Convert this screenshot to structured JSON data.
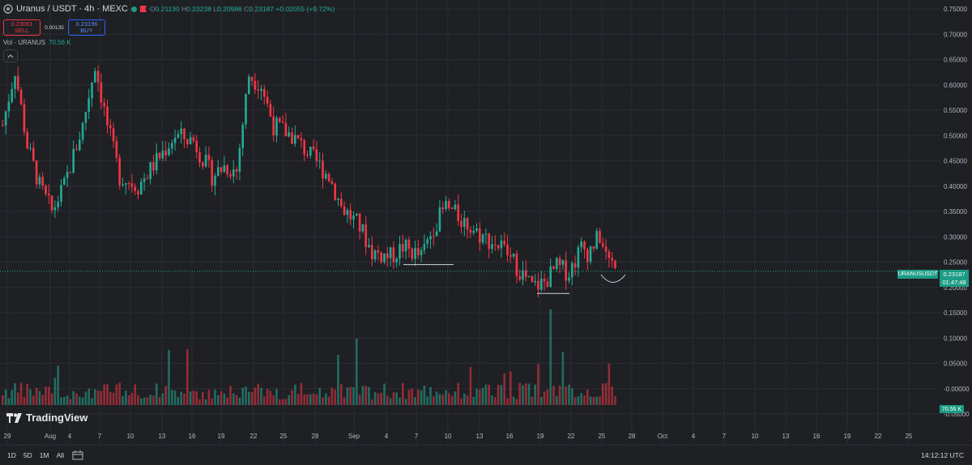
{
  "header": {
    "symbol_title": "Uranus / USDT · 4h · MEXC",
    "ohlc": {
      "o_label": "O",
      "o": "0.21130",
      "h_label": "H",
      "h": "0.23238",
      "l_label": "L",
      "l": "0.20986",
      "c_label": "C",
      "c": "0.23187",
      "change": "+0.02055 (+9.72%)"
    },
    "sell_price": "0.23061",
    "sell_label": "SELL",
    "spread": "0.00135",
    "buy_price": "0.23196",
    "buy_label": "BUY",
    "volume_label": "Vol · URANUS",
    "volume_value": "70.56 K"
  },
  "price_axis": {
    "ticks": [
      "0.75000",
      "0.70000",
      "0.65000",
      "0.60000",
      "0.55000",
      "0.50000",
      "0.45000",
      "0.40000",
      "0.35000",
      "0.30000",
      "0.25000",
      "0.20000",
      "0.15000",
      "0.10000",
      "0.05000",
      "-0.00000",
      "-0.05000"
    ],
    "last_price": "0.23187",
    "countdown": "01:47:48",
    "symbol_tag": "URANUSUSDT",
    "volume_tag": "70.56 K"
  },
  "time_axis": {
    "labels": [
      "29",
      "Aug",
      "4",
      "7",
      "10",
      "13",
      "16",
      "19",
      "22",
      "25",
      "28",
      "Sep",
      "4",
      "7",
      "10",
      "13",
      "16",
      "19",
      "22",
      "25",
      "28",
      "Oct",
      "4",
      "7",
      "10",
      "13",
      "16",
      "19",
      "22",
      "25"
    ]
  },
  "bottom_bar": {
    "timeframes": [
      "1D",
      "5D",
      "1M",
      "All"
    ],
    "clock": "14:12:12 UTC"
  },
  "branding": {
    "logo_text": "TradingView"
  },
  "colors": {
    "up": "#22ab94",
    "down": "#f23645",
    "bg": "#1f2024",
    "grid": "#2a2c33"
  },
  "chart_data": {
    "type": "candlestick",
    "interval": "4h",
    "ylim": [
      -0.075,
      0.76
    ],
    "price_path": [
      [
        0,
        0.52
      ],
      [
        4,
        0.63
      ],
      [
        8,
        0.48
      ],
      [
        12,
        0.4
      ],
      [
        16,
        0.35
      ],
      [
        20,
        0.4
      ],
      [
        26,
        0.52
      ],
      [
        30,
        0.64
      ],
      [
        34,
        0.52
      ],
      [
        38,
        0.42
      ],
      [
        44,
        0.4
      ],
      [
        50,
        0.45
      ],
      [
        56,
        0.5
      ],
      [
        62,
        0.49
      ],
      [
        68,
        0.42
      ],
      [
        72,
        0.44
      ],
      [
        76,
        0.43
      ],
      [
        80,
        0.62
      ],
      [
        84,
        0.6
      ],
      [
        88,
        0.52
      ],
      [
        94,
        0.5
      ],
      [
        100,
        0.46
      ],
      [
        106,
        0.42
      ],
      [
        110,
        0.36
      ],
      [
        116,
        0.32
      ],
      [
        120,
        0.27
      ],
      [
        126,
        0.26
      ],
      [
        130,
        0.28
      ],
      [
        136,
        0.26
      ],
      [
        140,
        0.32
      ],
      [
        144,
        0.36
      ],
      [
        150,
        0.33
      ],
      [
        156,
        0.3
      ],
      [
        162,
        0.28
      ],
      [
        166,
        0.25
      ],
      [
        172,
        0.2
      ],
      [
        176,
        0.21
      ],
      [
        180,
        0.24
      ],
      [
        184,
        0.23
      ],
      [
        188,
        0.28
      ],
      [
        190,
        0.27
      ],
      [
        194,
        0.3
      ],
      [
        196,
        0.26
      ],
      [
        200,
        0.23
      ]
    ],
    "annotations": [
      {
        "type": "support_line",
        "price": 0.245,
        "from_date": "Sep 6",
        "to_date": "Sep 10"
      },
      {
        "type": "support_line",
        "price": 0.188,
        "from_date": "Sep 19",
        "to_date": "Sep 22"
      },
      {
        "type": "arc",
        "near_date": "Sep 26",
        "price": 0.22
      }
    ],
    "volume_max_k": 340
  }
}
